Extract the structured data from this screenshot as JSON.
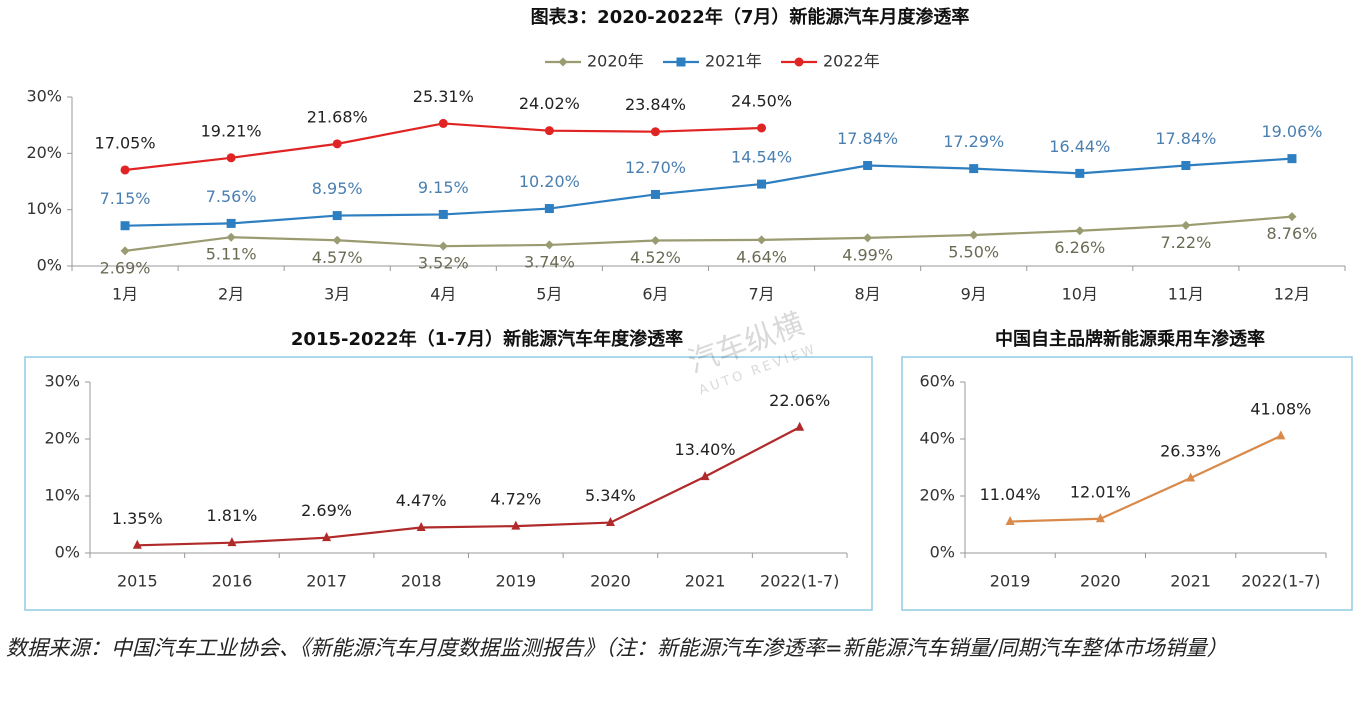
{
  "chart_data": [
    {
      "type": "line",
      "title": "图表3：2020-2022年（7月）新能源汽车月度渗透率",
      "categories": [
        "1月",
        "2月",
        "3月",
        "4月",
        "5月",
        "6月",
        "7月",
        "8月",
        "9月",
        "10月",
        "11月",
        "12月"
      ],
      "series": [
        {
          "name": "2020年",
          "color": "#9a9b70",
          "marker": "diamond",
          "label_color": "#6b6b55",
          "label_position": "below",
          "values": [
            2.69,
            5.11,
            4.57,
            3.52,
            3.74,
            4.52,
            4.64,
            4.99,
            5.5,
            6.26,
            7.22,
            8.76
          ],
          "value_labels": [
            "2.69%",
            "5.11%",
            "4.57%",
            "3.52%",
            "3.74%",
            "4.52%",
            "4.64%",
            "4.99%",
            "5.50%",
            "6.26%",
            "7.22%",
            "8.76%"
          ]
        },
        {
          "name": "2021年",
          "color": "#2e7fc1",
          "marker": "square",
          "label_color": "#4a7fb0",
          "label_position": "above",
          "values": [
            7.15,
            7.56,
            8.95,
            9.15,
            10.2,
            12.7,
            14.54,
            17.84,
            17.29,
            16.44,
            17.84,
            19.06
          ],
          "value_labels": [
            "7.15%",
            "7.56%",
            "8.95%",
            "9.15%",
            "10.20%",
            "12.70%",
            "14.54%",
            "17.84%",
            "17.29%",
            "16.44%",
            "17.84%",
            "19.06%"
          ]
        },
        {
          "name": "2022年",
          "color": "#e02424",
          "marker": "circle",
          "label_color": "#222222",
          "label_position": "above",
          "values": [
            17.05,
            19.21,
            21.68,
            25.31,
            24.02,
            23.84,
            24.5,
            null,
            null,
            null,
            null,
            null
          ],
          "value_labels": [
            "17.05%",
            "19.21%",
            "21.68%",
            "25.31%",
            "24.02%",
            "23.84%",
            "24.50%",
            null,
            null,
            null,
            null,
            null
          ]
        }
      ],
      "ylim": [
        0,
        30
      ],
      "yticks": [
        {
          "value": 0,
          "label": "0%"
        },
        {
          "value": 10,
          "label": "10%"
        },
        {
          "value": 20,
          "label": "20%"
        },
        {
          "value": 30,
          "label": "30%"
        }
      ],
      "legend": "top"
    },
    {
      "type": "line",
      "title": "2015-2022年（1-7月）新能源汽车年度渗透率",
      "categories": [
        "2015",
        "2016",
        "2017",
        "2018",
        "2019",
        "2020",
        "2021",
        "2022(1-7)"
      ],
      "values": [
        1.35,
        1.81,
        2.69,
        4.47,
        4.72,
        5.34,
        13.4,
        22.06
      ],
      "value_labels": [
        "1.35%",
        "1.81%",
        "2.69%",
        "4.47%",
        "4.72%",
        "5.34%",
        "13.40%",
        "22.06%"
      ],
      "color": "#b02a2a",
      "marker": "triangle",
      "label_color": "#222222",
      "label_position": "above",
      "ylim": [
        0,
        30
      ],
      "yticks": [
        {
          "value": 0,
          "label": "0%"
        },
        {
          "value": 10,
          "label": "10%"
        },
        {
          "value": 20,
          "label": "20%"
        },
        {
          "value": 30,
          "label": "30%"
        }
      ]
    },
    {
      "type": "line",
      "title": "中国自主品牌新能源乘用车渗透率",
      "categories": [
        "2019",
        "2020",
        "2021",
        "2022(1-7)"
      ],
      "values": [
        11.04,
        12.01,
        26.33,
        41.08
      ],
      "value_labels": [
        "11.04%",
        "12.01%",
        "26.33%",
        "41.08%"
      ],
      "color": "#d98a4a",
      "marker": "triangle",
      "label_color": "#222222",
      "label_position": "above",
      "ylim": [
        0,
        60
      ],
      "yticks": [
        {
          "value": 0,
          "label": "0%"
        },
        {
          "value": 20,
          "label": "20%"
        },
        {
          "value": 40,
          "label": "40%"
        },
        {
          "value": 60,
          "label": "60%"
        }
      ]
    }
  ],
  "watermark": [
    "汽车纵横",
    "AUTO REVIEW"
  ],
  "source": "数据来源：中国汽车工业协会、《新能源汽车月度数据监测报告》（注：新能源汽车渗透率=新能源汽车销量/同期汽车整体市场销量）"
}
